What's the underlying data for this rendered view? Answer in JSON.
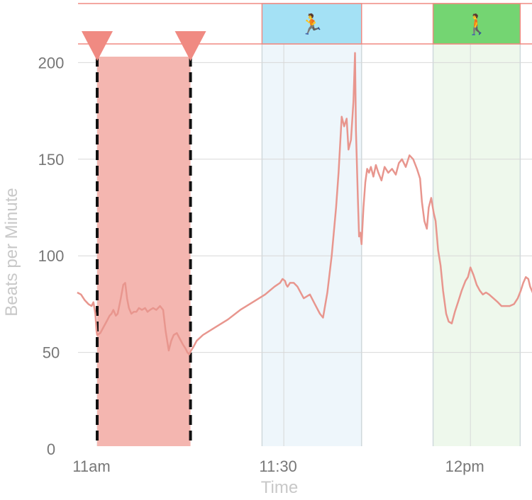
{
  "chart_data": {
    "type": "line",
    "title": "",
    "xlabel": "Time",
    "ylabel": "Beats per Minute",
    "ylim": [
      0,
      200
    ],
    "y_ticks": [
      "0",
      "50",
      "100",
      "150",
      "200"
    ],
    "x_ticks": [
      {
        "t": 0,
        "label": "11am"
      },
      {
        "t": 30,
        "label": "11:30"
      },
      {
        "t": 60,
        "label": "12pm"
      }
    ],
    "grid": true,
    "colors": {
      "line": "#e8968e",
      "selection": "#f4b6b0",
      "marker": "#f08a82",
      "run_fill": "#eef6fb",
      "run_band": "#a4e1f5",
      "walk_fill": "#eef8ec",
      "walk_band": "#74d572",
      "grid": "#d8d8d8"
    },
    "selection": {
      "start": 0,
      "end": 15
    },
    "activities": [
      {
        "type": "run",
        "start": 26.5,
        "end": 42.5,
        "icon": "🏃"
      },
      {
        "type": "walk",
        "start": 54,
        "end": 68,
        "icon": "🚶"
      }
    ],
    "series": [
      {
        "points": [
          [
            -3.2,
            81
          ],
          [
            -2.6,
            80
          ],
          [
            -2,
            77
          ],
          [
            -1.4,
            75
          ],
          [
            -0.9,
            74
          ],
          [
            -0.6,
            76
          ],
          [
            -0.3,
            70
          ],
          [
            -0.1,
            61
          ],
          [
            0,
            59
          ],
          [
            0.5,
            60
          ],
          [
            1,
            63
          ],
          [
            1.5,
            66
          ],
          [
            2,
            69
          ],
          [
            2.3,
            70
          ],
          [
            2.6,
            72
          ],
          [
            3,
            69
          ],
          [
            3.3,
            70
          ],
          [
            3.8,
            78
          ],
          [
            4.2,
            85
          ],
          [
            4.5,
            86
          ],
          [
            4.8,
            78
          ],
          [
            5.1,
            73
          ],
          [
            5.5,
            70
          ],
          [
            5.9,
            71
          ],
          [
            6.3,
            71
          ],
          [
            6.7,
            73
          ],
          [
            7.2,
            72
          ],
          [
            7.7,
            73
          ],
          [
            8.1,
            71
          ],
          [
            8.5,
            72
          ],
          [
            9,
            73
          ],
          [
            9.5,
            72
          ],
          [
            10.1,
            74
          ],
          [
            10.6,
            72
          ],
          [
            11,
            61
          ],
          [
            11.5,
            51
          ],
          [
            11.9,
            56
          ],
          [
            12.3,
            59
          ],
          [
            12.8,
            60
          ],
          [
            13.3,
            57
          ],
          [
            13.8,
            54
          ],
          [
            14.2,
            52
          ],
          [
            14.5,
            50
          ],
          [
            14.8,
            49
          ],
          [
            15.1,
            51
          ],
          [
            15.5,
            53
          ],
          [
            16,
            56
          ],
          [
            17,
            59
          ],
          [
            19,
            63
          ],
          [
            21,
            67
          ],
          [
            23,
            72
          ],
          [
            25,
            76
          ],
          [
            27,
            80
          ],
          [
            28.5,
            84
          ],
          [
            29.4,
            86
          ],
          [
            29.8,
            88
          ],
          [
            30.2,
            87
          ],
          [
            30.4,
            85
          ],
          [
            30.6,
            84
          ],
          [
            31,
            86
          ],
          [
            31.6,
            86
          ],
          [
            32.2,
            84
          ],
          [
            33.2,
            78
          ],
          [
            34.2,
            80
          ],
          [
            35,
            75
          ],
          [
            35.8,
            70
          ],
          [
            36.3,
            68
          ],
          [
            37,
            81
          ],
          [
            37.7,
            100
          ],
          [
            38.4,
            125
          ],
          [
            38.8,
            143
          ],
          [
            39.3,
            172
          ],
          [
            39.7,
            167
          ],
          [
            40.1,
            171
          ],
          [
            40.4,
            155
          ],
          [
            40.8,
            160
          ],
          [
            41.2,
            180
          ],
          [
            41.45,
            205
          ],
          [
            41.6,
            165
          ],
          [
            41.9,
            130
          ],
          [
            42.1,
            110
          ],
          [
            42.3,
            112
          ],
          [
            42.5,
            106
          ],
          [
            42.8,
            125
          ],
          [
            43.1,
            138
          ],
          [
            43.4,
            145
          ],
          [
            43.7,
            143
          ],
          [
            44,
            146
          ],
          [
            44.4,
            141
          ],
          [
            44.8,
            147
          ],
          [
            45.2,
            143
          ],
          [
            45.7,
            139
          ],
          [
            46.2,
            146
          ],
          [
            46.8,
            143
          ],
          [
            47.4,
            145
          ],
          [
            48,
            142
          ],
          [
            48.5,
            148
          ],
          [
            49,
            150
          ],
          [
            49.6,
            146
          ],
          [
            50.2,
            152
          ],
          [
            50.8,
            150
          ],
          [
            51.4,
            145
          ],
          [
            51.9,
            140
          ],
          [
            52.2,
            128
          ],
          [
            52.6,
            118
          ],
          [
            53,
            114
          ],
          [
            53.3,
            125
          ],
          [
            53.7,
            130
          ],
          [
            54.1,
            122
          ],
          [
            54.4,
            118
          ],
          [
            54.8,
            103
          ],
          [
            55.2,
            95
          ],
          [
            55.6,
            82
          ],
          [
            56.1,
            70
          ],
          [
            56.5,
            66
          ],
          [
            57,
            65
          ],
          [
            57.5,
            71
          ],
          [
            58,
            76
          ],
          [
            58.6,
            82
          ],
          [
            59.2,
            87
          ],
          [
            59.6,
            89
          ],
          [
            60,
            94
          ],
          [
            60.5,
            90
          ],
          [
            61,
            85
          ],
          [
            61.5,
            82
          ],
          [
            62,
            80
          ],
          [
            62.5,
            81
          ],
          [
            63,
            80
          ],
          [
            63.7,
            78
          ],
          [
            64.4,
            76
          ],
          [
            65,
            74
          ],
          [
            65.7,
            74
          ],
          [
            66.3,
            74
          ],
          [
            67,
            75
          ],
          [
            67.6,
            78
          ],
          [
            68.1,
            82
          ],
          [
            68.5,
            86
          ],
          [
            68.9,
            89
          ],
          [
            69.3,
            88
          ],
          [
            69.6,
            84
          ],
          [
            70,
            81
          ],
          [
            70.4,
            80
          ]
        ]
      }
    ]
  }
}
